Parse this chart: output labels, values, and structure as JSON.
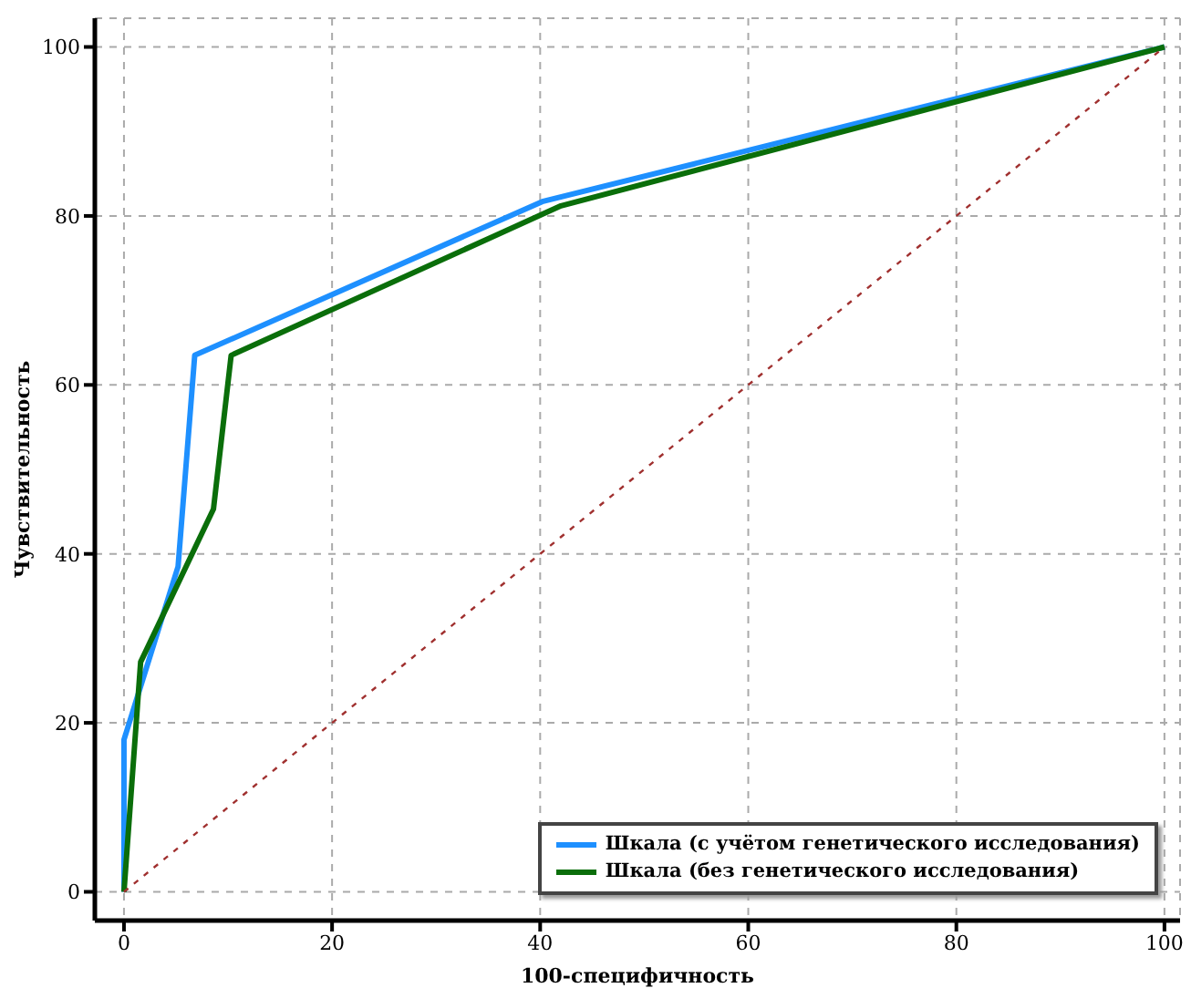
{
  "chart_data": {
    "type": "line",
    "xlabel": "100-специфичность",
    "ylabel": "Чувствительность",
    "xlim": [
      -2.8,
      101.5
    ],
    "ylim": [
      -3.4,
      103.4
    ],
    "xticks": [
      0,
      20,
      40,
      60,
      80,
      100
    ],
    "yticks": [
      0,
      20,
      40,
      60,
      80,
      100
    ],
    "grid": true,
    "legend": "bottom right",
    "marker": "none",
    "line_style": "solid",
    "series": [
      {
        "name": "Шкала (с учётом генетического исследования)",
        "color": "#1e90ff",
        "x": [
          0,
          0,
          5.2,
          6.8,
          40.2,
          100
        ],
        "values": [
          0,
          18,
          38.5,
          63.5,
          81.7,
          100
        ]
      },
      {
        "name": "Шкала (без генетического исследования)",
        "color": "#0a6e0a",
        "x": [
          0,
          1.6,
          8.6,
          10.3,
          42,
          100
        ],
        "values": [
          0,
          27.2,
          45.3,
          63.5,
          81.2,
          100
        ]
      },
      {
        "color": "#a0302f",
        "line_style": "dotted",
        "x": [
          0,
          100
        ],
        "values": [
          0,
          100
        ]
      }
    ]
  }
}
